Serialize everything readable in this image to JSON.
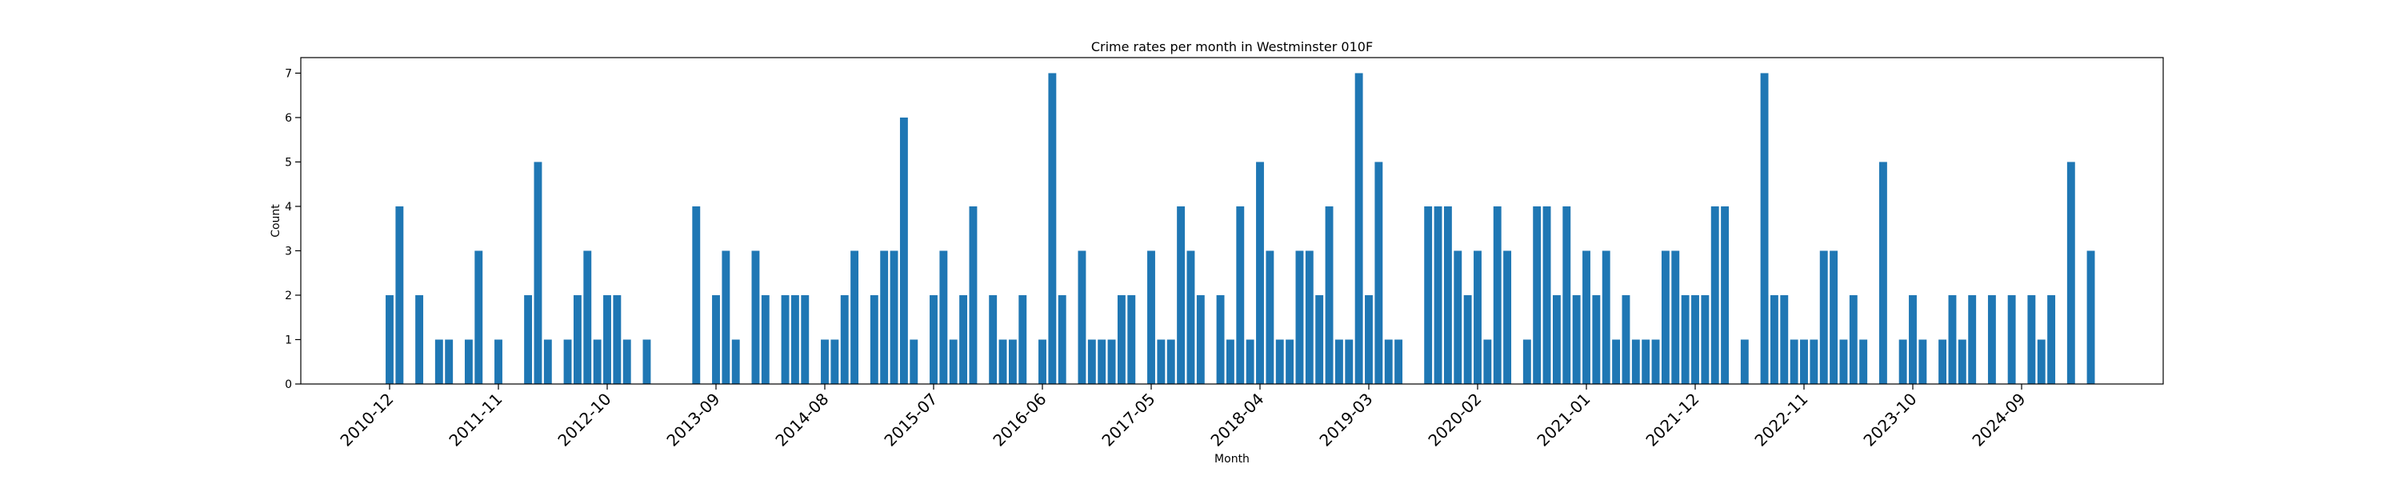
{
  "chart_data": {
    "type": "bar",
    "title": "Crime rates per month in Westminster 010F",
    "xlabel": "Month",
    "ylabel": "Count",
    "ylim": [
      0,
      7.35
    ],
    "yticks": [
      0,
      1,
      2,
      3,
      4,
      5,
      6,
      7
    ],
    "grid": false,
    "bar_color": "#1f77b4",
    "xtick_labels": [
      "2010-12",
      "2011-11",
      "2012-10",
      "2013-09",
      "2014-08",
      "2015-07",
      "2016-06",
      "2017-05",
      "2018-04",
      "2019-03",
      "2020-02",
      "2021-01",
      "2021-12",
      "2022-11",
      "2023-10",
      "2024-09"
    ],
    "categories": [
      "2010-12",
      "2011-01",
      "2011-02",
      "2011-03",
      "2011-04",
      "2011-05",
      "2011-06",
      "2011-07",
      "2011-08",
      "2011-09",
      "2011-10",
      "2011-11",
      "2011-12",
      "2012-01",
      "2012-02",
      "2012-03",
      "2012-04",
      "2012-05",
      "2012-06",
      "2012-07",
      "2012-08",
      "2012-09",
      "2012-10",
      "2012-11",
      "2012-12",
      "2013-01",
      "2013-02",
      "2013-03",
      "2013-04",
      "2013-05",
      "2013-06",
      "2013-07",
      "2013-08",
      "2013-09",
      "2013-10",
      "2013-11",
      "2013-12",
      "2014-01",
      "2014-02",
      "2014-03",
      "2014-04",
      "2014-05",
      "2014-06",
      "2014-07",
      "2014-08",
      "2014-09",
      "2014-10",
      "2014-11",
      "2014-12",
      "2015-01",
      "2015-02",
      "2015-03",
      "2015-04",
      "2015-05",
      "2015-06",
      "2015-07",
      "2015-08",
      "2015-09",
      "2015-10",
      "2015-11",
      "2015-12",
      "2016-01",
      "2016-02",
      "2016-03",
      "2016-04",
      "2016-05",
      "2016-06",
      "2016-07",
      "2016-08",
      "2016-09",
      "2016-10",
      "2016-11",
      "2016-12",
      "2017-01",
      "2017-02",
      "2017-03",
      "2017-04",
      "2017-05",
      "2017-06",
      "2017-07",
      "2017-08",
      "2017-09",
      "2017-10",
      "2017-11",
      "2017-12",
      "2018-01",
      "2018-02",
      "2018-03",
      "2018-04",
      "2018-05",
      "2018-06",
      "2018-07",
      "2018-08",
      "2018-09",
      "2018-10",
      "2018-11",
      "2018-12",
      "2019-01",
      "2019-02",
      "2019-03",
      "2019-04",
      "2019-05",
      "2019-06",
      "2019-07",
      "2019-08",
      "2019-09",
      "2019-10",
      "2019-11",
      "2019-12",
      "2020-01",
      "2020-02",
      "2020-03",
      "2020-04",
      "2020-05",
      "2020-06",
      "2020-07",
      "2020-08",
      "2020-09",
      "2020-10",
      "2020-11",
      "2020-12",
      "2021-01",
      "2021-02",
      "2021-03",
      "2021-04",
      "2021-05",
      "2021-06",
      "2021-07",
      "2021-08",
      "2021-09",
      "2021-10",
      "2021-11",
      "2021-12",
      "2022-01",
      "2022-02",
      "2022-03",
      "2022-04",
      "2022-05",
      "2022-06",
      "2022-07",
      "2022-08",
      "2022-09",
      "2022-10",
      "2022-11",
      "2022-12",
      "2023-01",
      "2023-02",
      "2023-03",
      "2023-04",
      "2023-05",
      "2023-06",
      "2023-07",
      "2023-08",
      "2023-09",
      "2023-10",
      "2023-11",
      "2023-12",
      "2024-01",
      "2024-02",
      "2024-03",
      "2024-04",
      "2024-05",
      "2024-06",
      "2024-07",
      "2024-08",
      "2024-09",
      "2024-10",
      "2024-11",
      "2024-12",
      "2025-01",
      "2025-02",
      "2025-03",
      "2025-04"
    ],
    "values": [
      2,
      4,
      0,
      2,
      0,
      1,
      1,
      0,
      1,
      3,
      0,
      1,
      0,
      0,
      2,
      5,
      1,
      0,
      1,
      2,
      3,
      1,
      2,
      2,
      1,
      0,
      1,
      0,
      0,
      0,
      0,
      4,
      0,
      2,
      3,
      1,
      0,
      3,
      2,
      0,
      2,
      2,
      2,
      0,
      1,
      1,
      2,
      3,
      0,
      2,
      3,
      3,
      6,
      1,
      0,
      2,
      3,
      1,
      2,
      4,
      0,
      2,
      1,
      1,
      2,
      0,
      1,
      7,
      2,
      0,
      3,
      1,
      1,
      1,
      2,
      2,
      0,
      3,
      1,
      1,
      4,
      3,
      2,
      0,
      2,
      1,
      4,
      1,
      5,
      3,
      1,
      1,
      3,
      3,
      2,
      4,
      1,
      1,
      7,
      2,
      5,
      1,
      1,
      0,
      0,
      4,
      4,
      4,
      3,
      2,
      3,
      1,
      4,
      3,
      0,
      1,
      4,
      4,
      2,
      4,
      2,
      3,
      2,
      3,
      1,
      2,
      1,
      1,
      1,
      3,
      3,
      2,
      2,
      2,
      4,
      4,
      0,
      1,
      0,
      7,
      2,
      2,
      1,
      1,
      1,
      3,
      3,
      1,
      2,
      1,
      0,
      5,
      0,
      1,
      2,
      1,
      0,
      1,
      2,
      1,
      2,
      0,
      2,
      0,
      2,
      0,
      2,
      1,
      2,
      0,
      5,
      0,
      3
    ]
  }
}
